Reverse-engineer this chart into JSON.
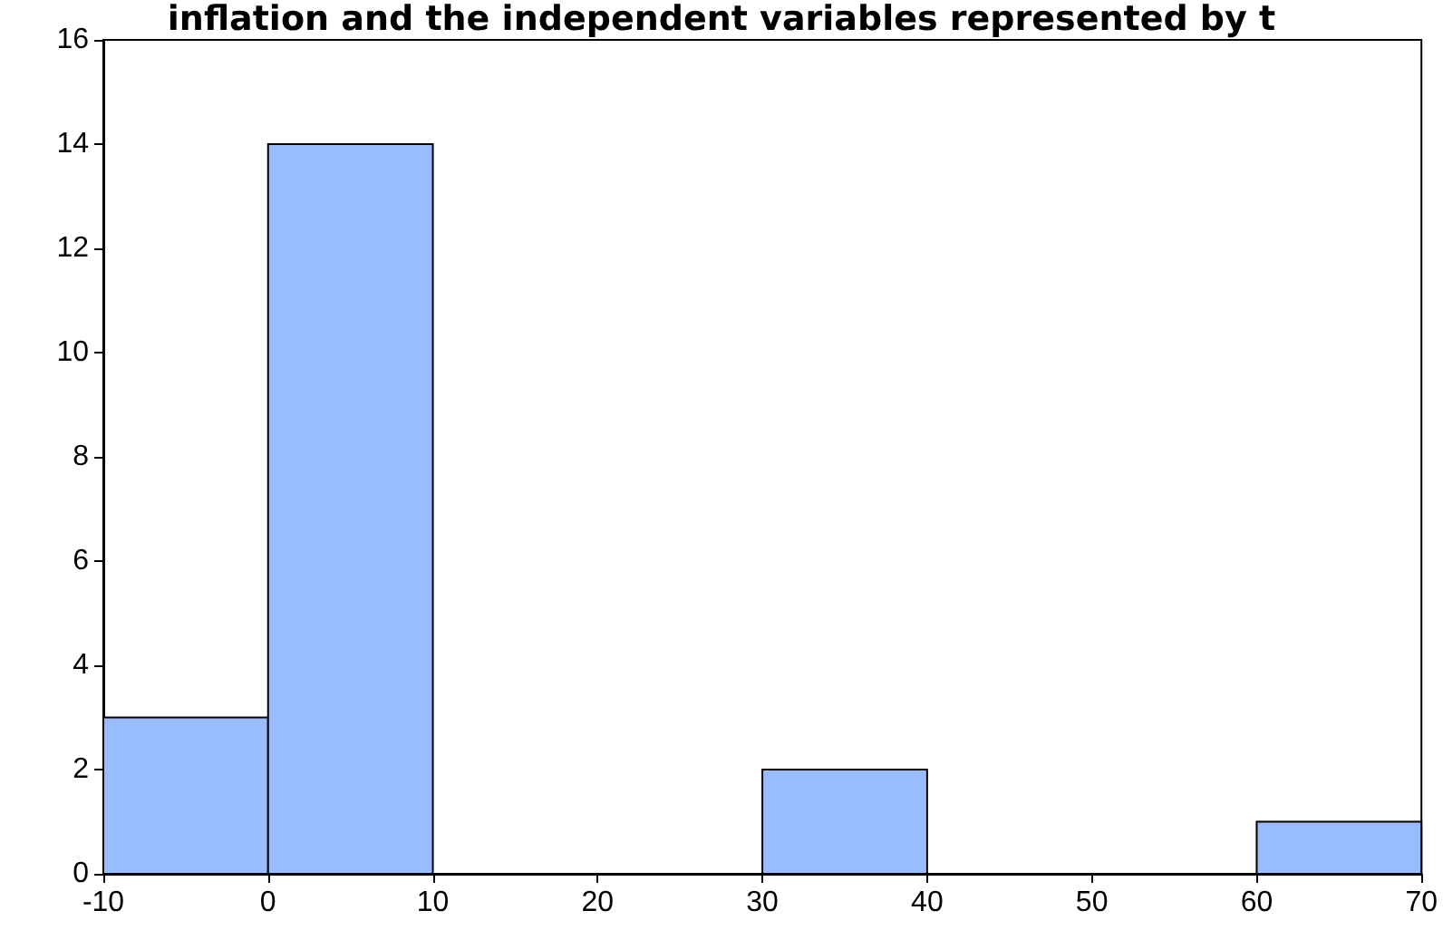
{
  "chart_data": {
    "type": "histogram",
    "title": "inflation and the independent variables represented by t",
    "bins": [
      -10,
      0,
      10,
      20,
      30,
      40,
      50,
      60,
      70
    ],
    "values": [
      3,
      14,
      0,
      0,
      2,
      0,
      0,
      1
    ],
    "color": "#99bbff",
    "xlim": [
      -10,
      70
    ],
    "xticks": [
      -10,
      0,
      10,
      20,
      30,
      40,
      50,
      60,
      70
    ],
    "ylim": [
      0,
      16
    ],
    "yticks": [
      0,
      2,
      4,
      6,
      8,
      10,
      12,
      14,
      16
    ],
    "grid": false
  }
}
